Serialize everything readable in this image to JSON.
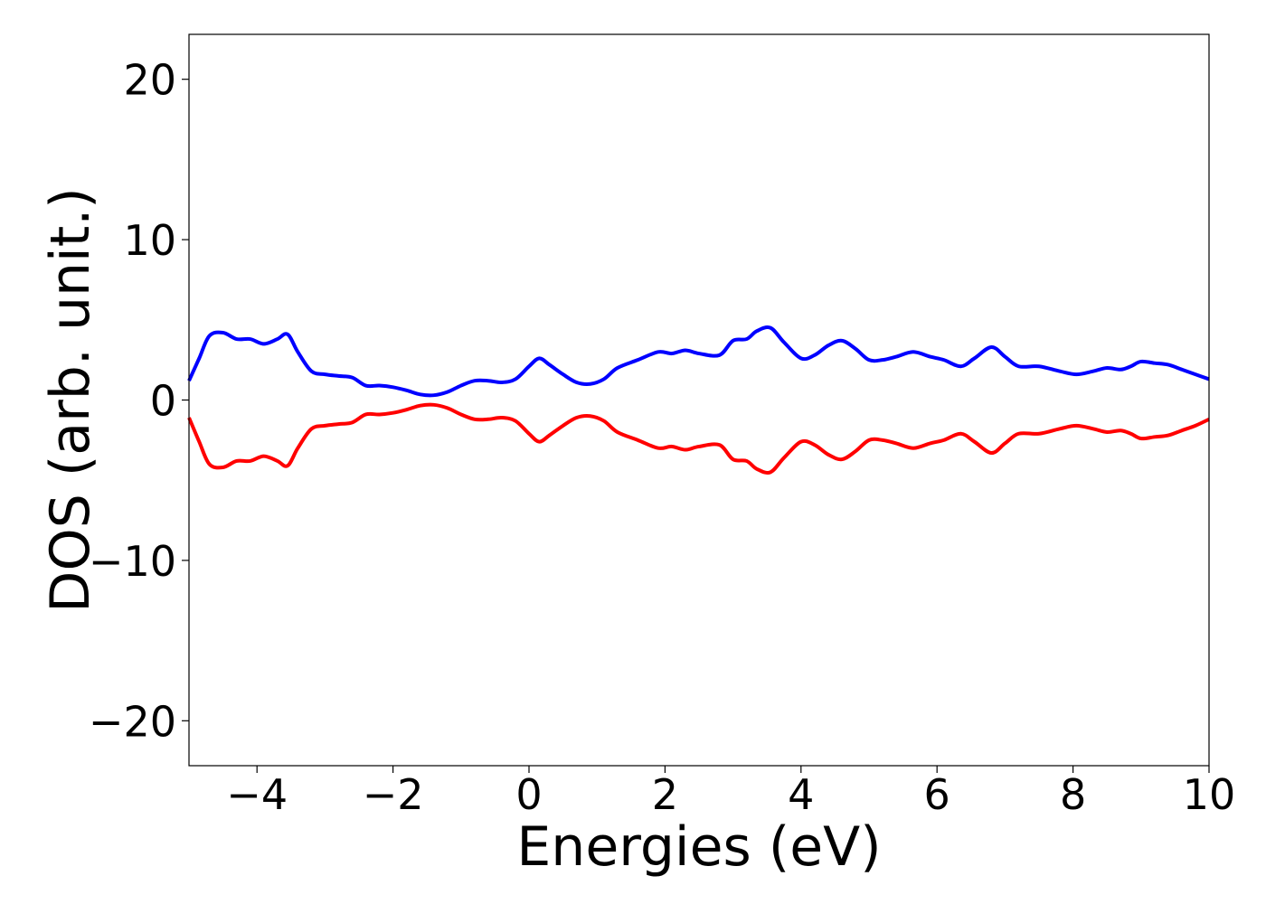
{
  "chart_data": {
    "type": "line",
    "title": "",
    "xlabel": "Energies (eV)",
    "ylabel": "DOS (arb. unit.)",
    "xlim": [
      -5,
      10
    ],
    "ylim": [
      -22.8,
      22.8
    ],
    "xticks": [
      -4,
      -2,
      0,
      2,
      4,
      6,
      8,
      10
    ],
    "xtick_labels": [
      "−4",
      "−2",
      "0",
      "2",
      "4",
      "6",
      "8",
      "10"
    ],
    "yticks": [
      -20,
      -10,
      0,
      10,
      20
    ],
    "ytick_labels": [
      "−20",
      "−10",
      "0",
      "10",
      "20"
    ],
    "grid": false,
    "legend": "none",
    "series": [
      {
        "color": "#0000ff",
        "x": [
          -5.0,
          -4.85,
          -4.7,
          -4.5,
          -4.3,
          -4.1,
          -3.9,
          -3.7,
          -3.55,
          -3.4,
          -3.2,
          -3.0,
          -2.8,
          -2.6,
          -2.4,
          -2.2,
          -2.0,
          -1.8,
          -1.6,
          -1.4,
          -1.2,
          -1.0,
          -0.8,
          -0.6,
          -0.4,
          -0.2,
          0.0,
          0.15,
          0.3,
          0.5,
          0.7,
          0.9,
          1.1,
          1.3,
          1.6,
          1.9,
          2.1,
          2.3,
          2.5,
          2.8,
          3.0,
          3.2,
          3.35,
          3.55,
          3.75,
          4.0,
          4.2,
          4.4,
          4.6,
          4.8,
          5.0,
          5.2,
          5.4,
          5.65,
          5.9,
          6.1,
          6.35,
          6.55,
          6.8,
          7.0,
          7.2,
          7.5,
          7.8,
          8.05,
          8.3,
          8.5,
          8.7,
          8.85,
          9.0,
          9.2,
          9.4,
          9.6,
          9.8,
          10.0
        ],
        "values": [
          1.2,
          2.6,
          4.0,
          4.2,
          3.8,
          3.8,
          3.5,
          3.8,
          4.1,
          3.0,
          1.8,
          1.6,
          1.5,
          1.4,
          0.9,
          0.9,
          0.8,
          0.6,
          0.35,
          0.3,
          0.5,
          0.9,
          1.2,
          1.2,
          1.1,
          1.3,
          2.1,
          2.6,
          2.2,
          1.6,
          1.1,
          1.0,
          1.3,
          2.0,
          2.5,
          3.0,
          2.9,
          3.1,
          2.9,
          2.8,
          3.7,
          3.8,
          4.3,
          4.5,
          3.6,
          2.6,
          2.8,
          3.4,
          3.7,
          3.2,
          2.5,
          2.5,
          2.7,
          3.0,
          2.7,
          2.5,
          2.1,
          2.6,
          3.3,
          2.7,
          2.1,
          2.1,
          1.8,
          1.6,
          1.8,
          2.0,
          1.9,
          2.1,
          2.4,
          2.3,
          2.2,
          1.9,
          1.6,
          1.3
        ]
      },
      {
        "color": "#ff0000",
        "x": [
          -5.0,
          -4.85,
          -4.7,
          -4.5,
          -4.3,
          -4.1,
          -3.9,
          -3.7,
          -3.55,
          -3.4,
          -3.2,
          -3.0,
          -2.8,
          -2.6,
          -2.4,
          -2.2,
          -2.0,
          -1.8,
          -1.6,
          -1.4,
          -1.2,
          -1.0,
          -0.8,
          -0.6,
          -0.4,
          -0.2,
          0.0,
          0.15,
          0.3,
          0.5,
          0.7,
          0.9,
          1.1,
          1.3,
          1.6,
          1.9,
          2.1,
          2.3,
          2.5,
          2.8,
          3.0,
          3.2,
          3.35,
          3.55,
          3.75,
          4.0,
          4.2,
          4.4,
          4.6,
          4.8,
          5.0,
          5.2,
          5.4,
          5.65,
          5.9,
          6.1,
          6.35,
          6.55,
          6.8,
          7.0,
          7.2,
          7.5,
          7.8,
          8.05,
          8.3,
          8.5,
          8.7,
          8.85,
          9.0,
          9.2,
          9.4,
          9.6,
          9.8,
          10.0
        ],
        "values": [
          -1.1,
          -2.6,
          -4.0,
          -4.2,
          -3.8,
          -3.8,
          -3.5,
          -3.8,
          -4.1,
          -3.0,
          -1.8,
          -1.6,
          -1.5,
          -1.4,
          -0.9,
          -0.9,
          -0.8,
          -0.6,
          -0.35,
          -0.3,
          -0.5,
          -0.9,
          -1.2,
          -1.2,
          -1.1,
          -1.3,
          -2.1,
          -2.6,
          -2.2,
          -1.6,
          -1.1,
          -1.0,
          -1.3,
          -2.0,
          -2.5,
          -3.0,
          -2.9,
          -3.1,
          -2.9,
          -2.8,
          -3.7,
          -3.8,
          -4.3,
          -4.5,
          -3.6,
          -2.6,
          -2.8,
          -3.4,
          -3.7,
          -3.2,
          -2.5,
          -2.5,
          -2.7,
          -3.0,
          -2.7,
          -2.5,
          -2.1,
          -2.6,
          -3.3,
          -2.7,
          -2.1,
          -2.1,
          -1.8,
          -1.6,
          -1.8,
          -2.0,
          -1.9,
          -2.1,
          -2.4,
          -2.3,
          -2.2,
          -1.9,
          -1.6,
          -1.2
        ]
      }
    ]
  }
}
